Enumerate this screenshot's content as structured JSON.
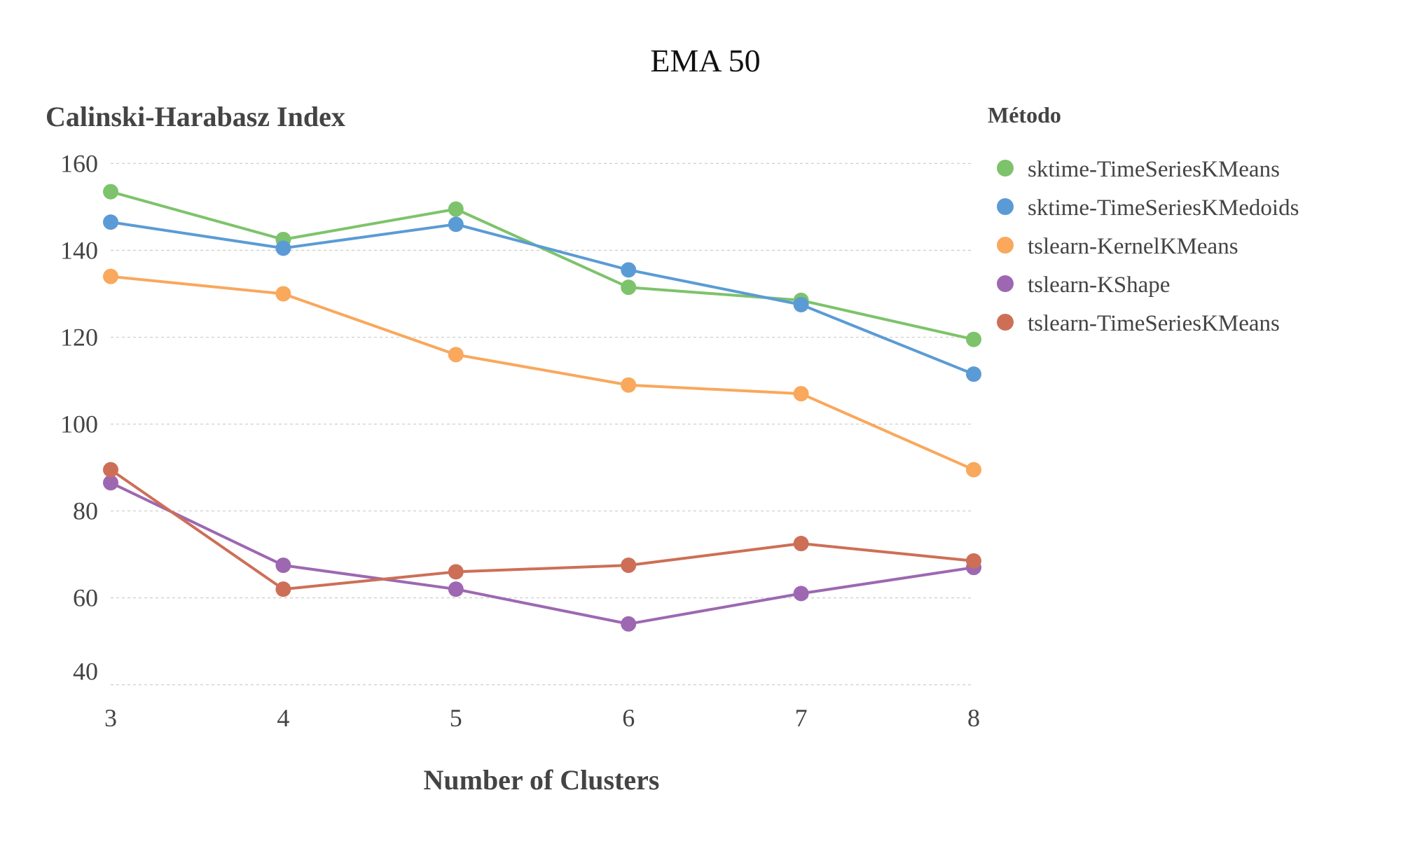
{
  "chart_data": {
    "type": "line",
    "title": "EMA 50",
    "xlabel": "Number of Clusters",
    "ylabel": "Calinski-Harabasz Index",
    "x": [
      3,
      4,
      5,
      6,
      7,
      8
    ],
    "xticks": [
      "3",
      "4",
      "5",
      "6",
      "7",
      "8"
    ],
    "yticks": [
      "40",
      "60",
      "80",
      "100",
      "120",
      "140",
      "160"
    ],
    "ylim": [
      40,
      160
    ],
    "grid": true,
    "legend_title": "Método",
    "legend_position": "right",
    "series": [
      {
        "name": "sktime-TimeSeriesKMeans",
        "color": "#7dc36b",
        "values": [
          153.5,
          142.5,
          149.5,
          131.5,
          128.5,
          119.5
        ]
      },
      {
        "name": "sktime-TimeSeriesKMedoids",
        "color": "#5b9bd5",
        "values": [
          146.5,
          140.5,
          146.0,
          135.5,
          127.5,
          111.5
        ]
      },
      {
        "name": "tslearn-KernelKMeans",
        "color": "#f9a85c",
        "values": [
          134.0,
          130.0,
          116.0,
          109.0,
          107.0,
          89.5
        ]
      },
      {
        "name": "tslearn-KShape",
        "color": "#9d68b1",
        "values": [
          86.5,
          67.5,
          62.0,
          54.0,
          61.0,
          67.0
        ]
      },
      {
        "name": "tslearn-TimeSeriesKMeans",
        "color": "#cd6f57",
        "values": [
          89.5,
          62.0,
          66.0,
          67.5,
          72.5,
          68.5
        ]
      }
    ]
  }
}
